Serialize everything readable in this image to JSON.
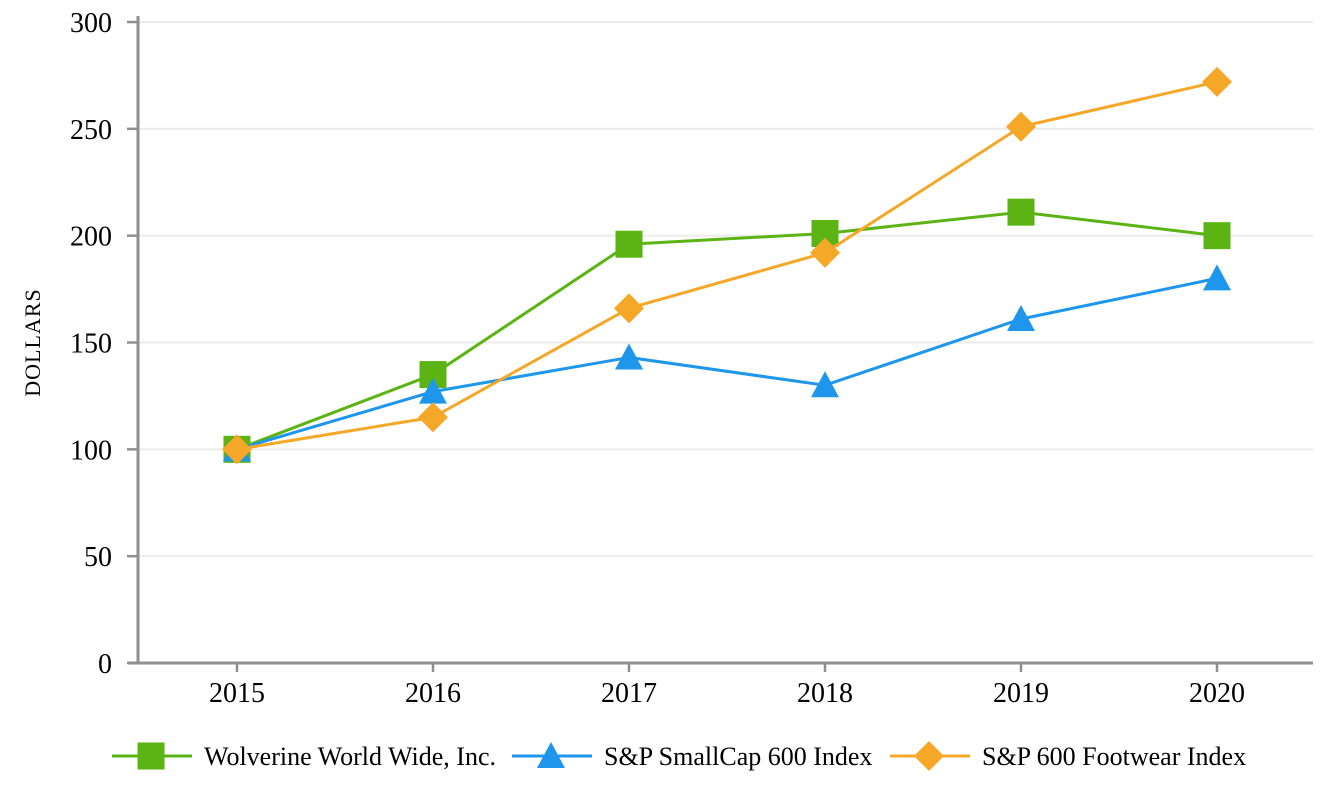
{
  "chart_data": {
    "type": "line",
    "title": "",
    "xlabel": "",
    "ylabel": "DOLLARS",
    "ylim": [
      0,
      300
    ],
    "yticks": [
      0,
      50,
      100,
      150,
      200,
      250,
      300
    ],
    "categories": [
      "2015",
      "2016",
      "2017",
      "2018",
      "2019",
      "2020"
    ],
    "grid": "horizontal-only",
    "legend_position": "bottom",
    "series": [
      {
        "name": "Wolverine World Wide, Inc.",
        "marker": "square",
        "color": "#5BB413",
        "values": [
          100,
          135,
          196,
          201,
          211,
          200
        ]
      },
      {
        "name": "S&P SmallCap 600 Index",
        "marker": "triangle",
        "color": "#1E96EC",
        "values": [
          100,
          127,
          143,
          130,
          161,
          180
        ]
      },
      {
        "name": "S&P 600 Footwear Index",
        "marker": "diamond",
        "color": "#F5A728",
        "values": [
          100,
          115,
          166,
          192,
          251,
          272
        ]
      }
    ],
    "colors": {
      "background": "#FFFFFF",
      "gridline": "#EBEBEB",
      "axis": "#8F8F8F",
      "text": "#000000"
    }
  }
}
